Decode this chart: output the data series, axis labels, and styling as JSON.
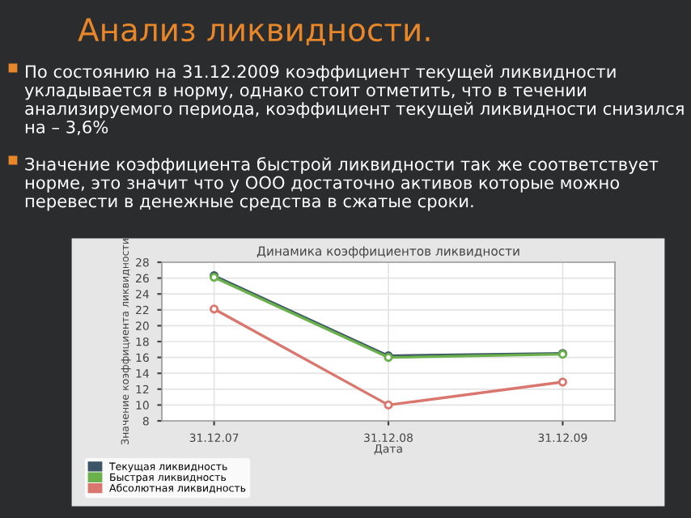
{
  "chart_data": {
    "type": "line",
    "title": "Анализ ликвидности.",
    "subtitle": "Динамика коэффициентов ликвидности",
    "annotations": [
      "По состоянию на 31.12.2009 коэффициент текущей ликвидности укладывается в норму, однако стоит отметить, что в течении анализируемого периода, коэффициент текущей ликвидности снизился на – 3,6%",
      "Значение коэффициента быстрой ликвидности так же соответствует норме, это значит что у ООО достаточно активов которые можно перевести в денежные средства в сжатые сроки."
    ],
    "xlabel": "Дата",
    "ylabel": "Значение коэффициента ликвидности",
    "categories": [
      "31.12.07",
      "31.12.08",
      "31.12.09"
    ],
    "series": [
      {
        "name": "Текущая ликвидность",
        "color": "#3b5566",
        "values": [
          26.3,
          16.2,
          16.5
        ]
      },
      {
        "name": "Быстрая ликвидность",
        "color": "#6ab04c",
        "values": [
          26.1,
          16.0,
          16.4
        ]
      },
      {
        "name": "Абсолютная ликвидность",
        "color": "#d9776f",
        "values": [
          22.1,
          10.0,
          12.9
        ]
      }
    ],
    "ylim": [
      8,
      28
    ],
    "yticks": [
      8,
      10,
      12,
      14,
      16,
      18,
      20,
      22,
      24,
      26,
      28
    ],
    "grid": true,
    "legend": "bottom left",
    "marker": "circle",
    "line_style": "solid"
  }
}
